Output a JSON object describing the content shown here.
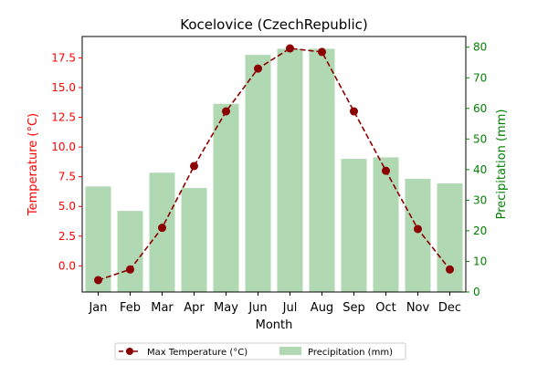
{
  "chart_data": {
    "type": "bar",
    "title": "Kocelovice (CzechRepublic)",
    "xlabel": "Month",
    "ylabel_left": "Temperature (°C)",
    "ylabel_right": "Precipitation (mm)",
    "categories": [
      "Jan",
      "Feb",
      "Mar",
      "Apr",
      "May",
      "Jun",
      "Jul",
      "Aug",
      "Sep",
      "Oct",
      "Nov",
      "Dec"
    ],
    "series": [
      {
        "name": "Max Temperature (°C)",
        "type": "line",
        "axis": "left",
        "values": [
          -1.2,
          -0.3,
          3.2,
          8.4,
          13.0,
          16.6,
          18.3,
          18.0,
          13.0,
          8.0,
          3.1,
          -0.3
        ]
      },
      {
        "name": "Precipitation (mm)",
        "type": "bar",
        "axis": "right",
        "values": [
          34.5,
          26.5,
          39.0,
          34.0,
          61.5,
          77.5,
          79.5,
          79.5,
          43.5,
          44.0,
          37.0,
          35.5
        ]
      }
    ],
    "ylim_left": [
      -2.2,
      19.3
    ],
    "ylim_right": [
      0,
      83.5
    ],
    "yticks_left": [
      "0.0",
      "2.5",
      "5.0",
      "7.5",
      "10.0",
      "12.5",
      "15.0",
      "17.5"
    ],
    "yticks_right": [
      "0",
      "10",
      "20",
      "30",
      "40",
      "50",
      "60",
      "70",
      "80"
    ],
    "grid": false,
    "legend_placement": "bottom-center",
    "colors": {
      "line": "#8b0000",
      "bar": "#b0d8b2",
      "left_axis": "#ff0000",
      "right_axis": "#008000"
    }
  }
}
